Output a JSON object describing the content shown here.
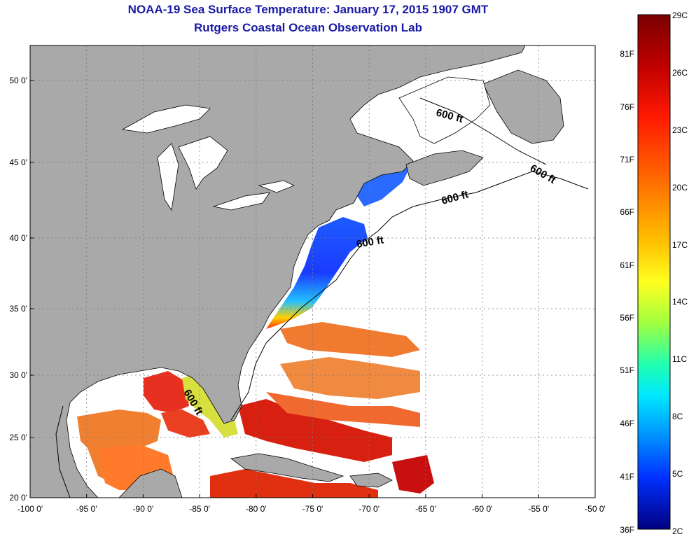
{
  "title": "NOAA-19 Sea Surface Temperature:  January 17, 2015 1907 GMT",
  "subtitle": "Rutgers Coastal Ocean Observation Lab",
  "x_ticks": [
    "-100 0'",
    "-95 0'",
    "-90 0'",
    "-85 0'",
    "-80 0'",
    "-75 0'",
    "-70 0'",
    "-65 0'",
    "-60 0'",
    "-55 0'",
    "-50 0'"
  ],
  "y_ticks": [
    "50 0'",
    "45 0'",
    "40 0'",
    "35 0'",
    "30 0'",
    "25 0'",
    "20 0'"
  ],
  "contour_labels": [
    "600 ft",
    "600 ft",
    "600 ft",
    "600 ft",
    "600 ft"
  ],
  "colorbar": {
    "celsius": [
      "29C",
      "26C",
      "23C",
      "20C",
      "17C",
      "14C",
      "11C",
      "8C",
      "5C",
      "2C"
    ],
    "fahrenheit": [
      "81F",
      "76F",
      "71F",
      "66F",
      "61F",
      "56F",
      "51F",
      "46F",
      "41F",
      "36F"
    ]
  },
  "colors": {
    "land": "#a9a9a9",
    "ocean_nodata": "#ffffff",
    "title": "#1a1aa6",
    "grid": "#777777"
  }
}
